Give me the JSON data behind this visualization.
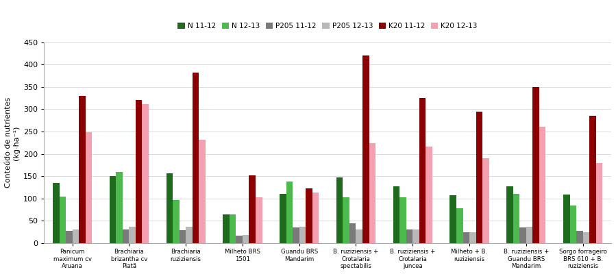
{
  "categories": [
    "Panicum\nmaximum cv\nAruana",
    "Brachiaria\nbrizantha cv\nPiatã",
    "Brachiaria\nruziziensis",
    "Milheto BRS\n1501",
    "Guandu BRS\nMandarim",
    "B. ruziziensis +\nCrotalaria\nspectabilis",
    "B. ruziziensis +\nCrotalaria\njuncea",
    "Milheto + B.\nruziziensis",
    "B. ruziziensis +\nGuandu BRS\nMandarim",
    "Sorgo forrageiro\nBRS 610 + B.\nruziziensis"
  ],
  "series": {
    "N 11-12": [
      135,
      150,
      157,
      65,
      110,
      148,
      128,
      108,
      127,
      109
    ],
    "N 12-13": [
      105,
      160,
      97,
      65,
      138,
      103,
      103,
      78,
      111,
      85
    ],
    "P205 11-12": [
      28,
      30,
      29,
      17,
      35,
      44,
      30,
      24,
      35,
      27
    ],
    "P205 12-13": [
      30,
      37,
      37,
      19,
      36,
      30,
      31,
      25,
      37,
      25
    ],
    "K20 11-12": [
      330,
      320,
      382,
      152,
      122,
      420,
      325,
      295,
      350,
      285
    ],
    "K20 12-13": [
      248,
      312,
      232,
      103,
      113,
      224,
      217,
      190,
      261,
      179
    ]
  },
  "colors": {
    "N 11-12": "#1e6b1e",
    "N 12-13": "#4cba4c",
    "P205 11-12": "#7a7a7a",
    "P205 12-13": "#b8b8b8",
    "K20 11-12": "#8b0000",
    "K20 12-13": "#f4a0b0"
  },
  "ylabel_line1": "Conteúdo de nutrientes",
  "ylabel_line2": "(kg·ha⁻¹)",
  "ylim": [
    0,
    450
  ],
  "yticks": [
    0,
    50,
    100,
    150,
    200,
    250,
    300,
    350,
    400,
    450
  ],
  "legend_order": [
    "N 11-12",
    "N 12-13",
    "P205 11-12",
    "P205 12-13",
    "K20 11-12",
    "K20 12-13"
  ]
}
